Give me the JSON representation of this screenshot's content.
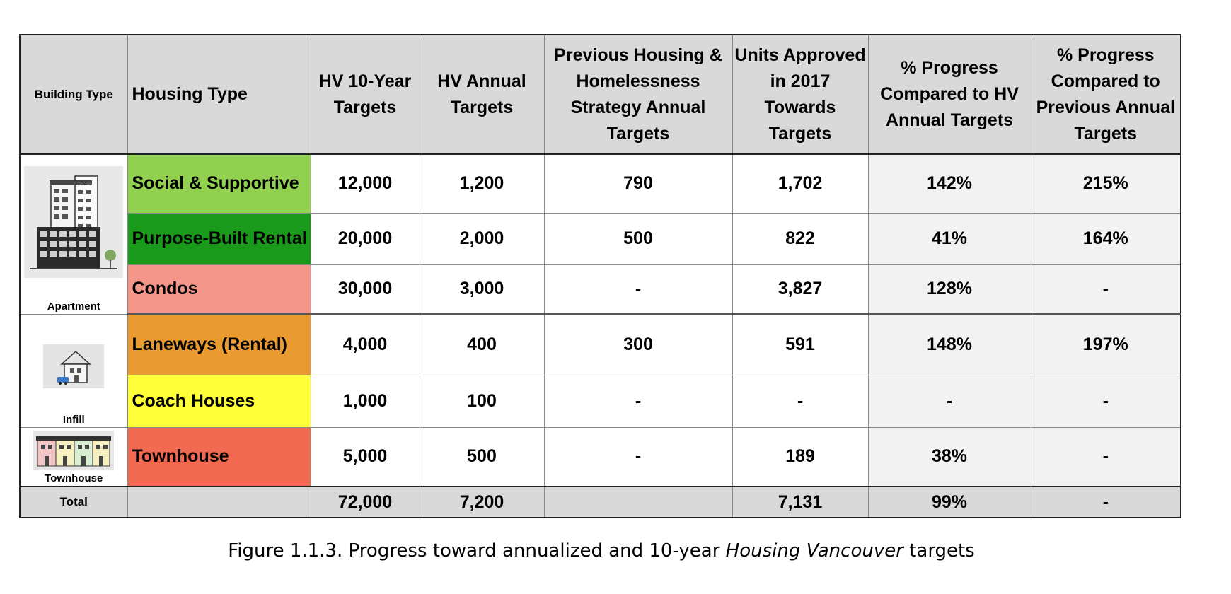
{
  "headers": {
    "building_type": "Building Type",
    "housing_type": "Housing Type",
    "hv_10yr": [
      "HV 10-Year",
      "Targets"
    ],
    "hv_annual": [
      "HV Annual",
      "Targets"
    ],
    "previous": [
      "Previous Housing &",
      "Homelessness",
      "Strategy Annual",
      "Targets"
    ],
    "approved": [
      "Units Approved",
      "in 2017",
      "Towards",
      "Targets"
    ],
    "pct_hv": [
      "% Progress",
      "Compared to HV",
      "Annual Targets"
    ],
    "pct_prev": [
      "% Progress",
      "Compared to",
      "Previous Annual",
      "Targets"
    ]
  },
  "building_types": {
    "apartment": {
      "label": "Apartment",
      "icon": "apartment-building-icon"
    },
    "infill": {
      "label": "Infill",
      "icon": "infill-house-icon"
    },
    "townhouse": {
      "label": "Townhouse",
      "icon": "townhouse-row-icon"
    }
  },
  "rows": [
    {
      "housing_type": "Social & Supportive",
      "color": "#92d050",
      "hv_10yr": "12,000",
      "hv_annual": "1,200",
      "previous": "790",
      "approved": "1,702",
      "pct_hv": "142%",
      "pct_prev": "215%"
    },
    {
      "housing_type": "Purpose-Built Rental",
      "color": "#1a9a1a",
      "hv_10yr": "20,000",
      "hv_annual": "2,000",
      "previous": "500",
      "approved": "822",
      "pct_hv": "41%",
      "pct_prev": "164%"
    },
    {
      "housing_type": "Condos",
      "color": "#f4978a",
      "hv_10yr": "30,000",
      "hv_annual": "3,000",
      "previous": "-",
      "approved": "3,827",
      "pct_hv": "128%",
      "pct_prev": "-"
    },
    {
      "housing_type": "Laneways (Rental)",
      "color": "#e99b32",
      "hv_10yr": "4,000",
      "hv_annual": "400",
      "previous": "300",
      "approved": "591",
      "pct_hv": "148%",
      "pct_prev": "197%"
    },
    {
      "housing_type": "Coach Houses",
      "color": "#ffff3a",
      "hv_10yr": "1,000",
      "hv_annual": "100",
      "previous": "-",
      "approved": "-",
      "pct_hv": "-",
      "pct_prev": "-"
    },
    {
      "housing_type": "Townhouse",
      "color": "#f06950",
      "hv_10yr": "5,000",
      "hv_annual": "500",
      "previous": "-",
      "approved": "189",
      "pct_hv": "38%",
      "pct_prev": "-"
    }
  ],
  "total": {
    "label": "Total",
    "housing_type": "",
    "hv_10yr": "72,000",
    "hv_annual": "7,200",
    "previous": "",
    "approved": "7,131",
    "pct_hv": "99%",
    "pct_prev": "-"
  },
  "caption": {
    "prefix": "Figure 1.1.3.",
    "text1": " Progress toward annualized and 10-year ",
    "italic": "Housing Vancouver",
    "text2": " targets"
  }
}
